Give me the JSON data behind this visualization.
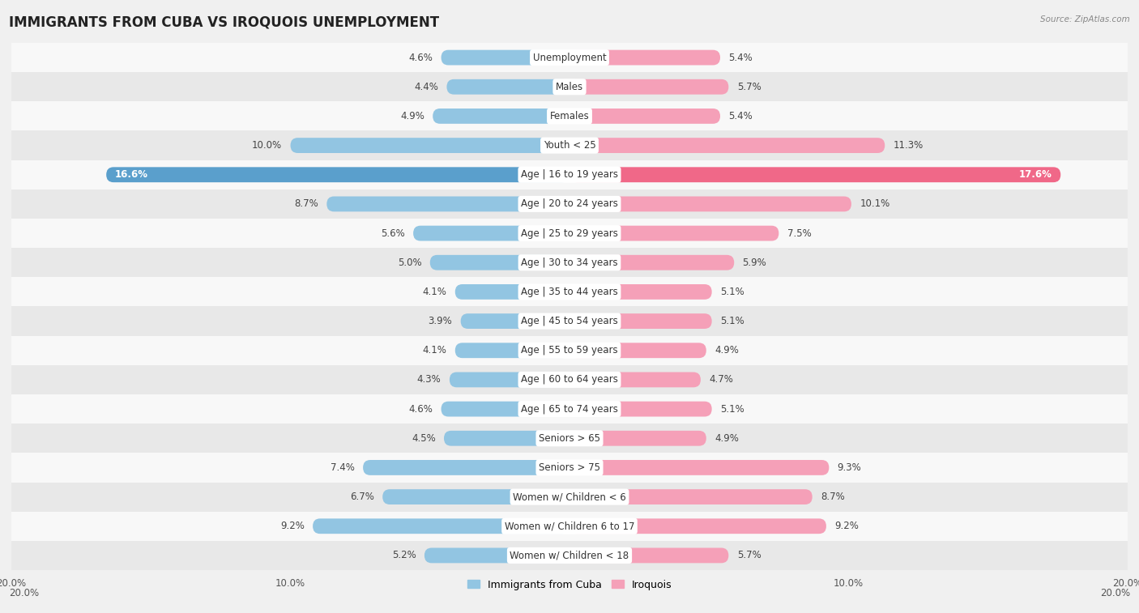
{
  "title": "IMMIGRANTS FROM CUBA VS IROQUOIS UNEMPLOYMENT",
  "source": "Source: ZipAtlas.com",
  "categories": [
    "Unemployment",
    "Males",
    "Females",
    "Youth < 25",
    "Age | 16 to 19 years",
    "Age | 20 to 24 years",
    "Age | 25 to 29 years",
    "Age | 30 to 34 years",
    "Age | 35 to 44 years",
    "Age | 45 to 54 years",
    "Age | 55 to 59 years",
    "Age | 60 to 64 years",
    "Age | 65 to 74 years",
    "Seniors > 65",
    "Seniors > 75",
    "Women w/ Children < 6",
    "Women w/ Children 6 to 17",
    "Women w/ Children < 18"
  ],
  "cuba_values": [
    4.6,
    4.4,
    4.9,
    10.0,
    16.6,
    8.7,
    5.6,
    5.0,
    4.1,
    3.9,
    4.1,
    4.3,
    4.6,
    4.5,
    7.4,
    6.7,
    9.2,
    5.2
  ],
  "iroquois_values": [
    5.4,
    5.7,
    5.4,
    11.3,
    17.6,
    10.1,
    7.5,
    5.9,
    5.1,
    5.1,
    4.9,
    4.7,
    5.1,
    4.9,
    9.3,
    8.7,
    9.2,
    5.7
  ],
  "cuba_color": "#92c5e2",
  "iroquois_color": "#f5a0b8",
  "highlight_cuba_color": "#5a9fcc",
  "highlight_iroquois_color": "#f06888",
  "highlight_row": 4,
  "bar_height": 0.52,
  "xlim": 20.0,
  "bg_color": "#f0f0f0",
  "row_bg_light": "#f8f8f8",
  "row_bg_dark": "#e8e8e8",
  "legend_cuba_label": "Immigrants from Cuba",
  "legend_iroquois_label": "Iroquois",
  "title_fontsize": 12,
  "label_fontsize": 8.5,
  "value_fontsize": 8.5,
  "axis_label_fontsize": 8.5
}
